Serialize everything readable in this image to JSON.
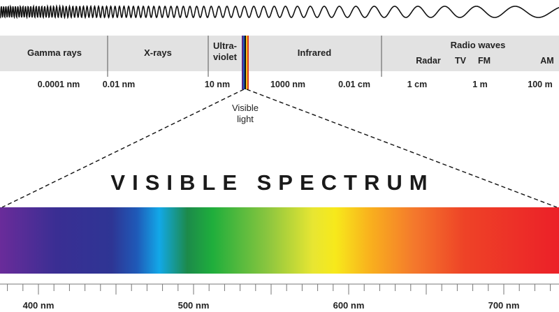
{
  "em_spectrum": {
    "bands": {
      "gamma": "Gamma rays",
      "xrays": "X-rays",
      "ultraviolet": [
        "Ultra-",
        "violet"
      ],
      "infrared": "Infrared",
      "radio": "Radio waves"
    },
    "radio_subbands": [
      "Radar",
      "TV",
      "FM",
      "AM"
    ],
    "wavelength_labels": [
      "0.0001 nm",
      "0.01 nm",
      "10 nm",
      "1000 nm",
      "0.01 cm",
      "1 cm",
      "1 m",
      "100 m"
    ],
    "visible_label": [
      "Visible",
      "light"
    ]
  },
  "visible_spectrum": {
    "title": "VISIBLE SPECTRUM",
    "nm_labels": [
      "400 nm",
      "500 nm",
      "600 nm",
      "700 nm"
    ]
  },
  "colors": {
    "band_fill": "#e2e2e2",
    "divider": "#555555",
    "spectrum_stops": [
      "#6a2c9a",
      "#3a2e93",
      "#2e3594",
      "#1f5ab8",
      "#12a8e8",
      "#1c8a4a",
      "#1fae3c",
      "#8cc63f",
      "#e8e632",
      "#f7e91b",
      "#f9b21d",
      "#f4792c",
      "#ee4327",
      "#ec2028"
    ]
  }
}
